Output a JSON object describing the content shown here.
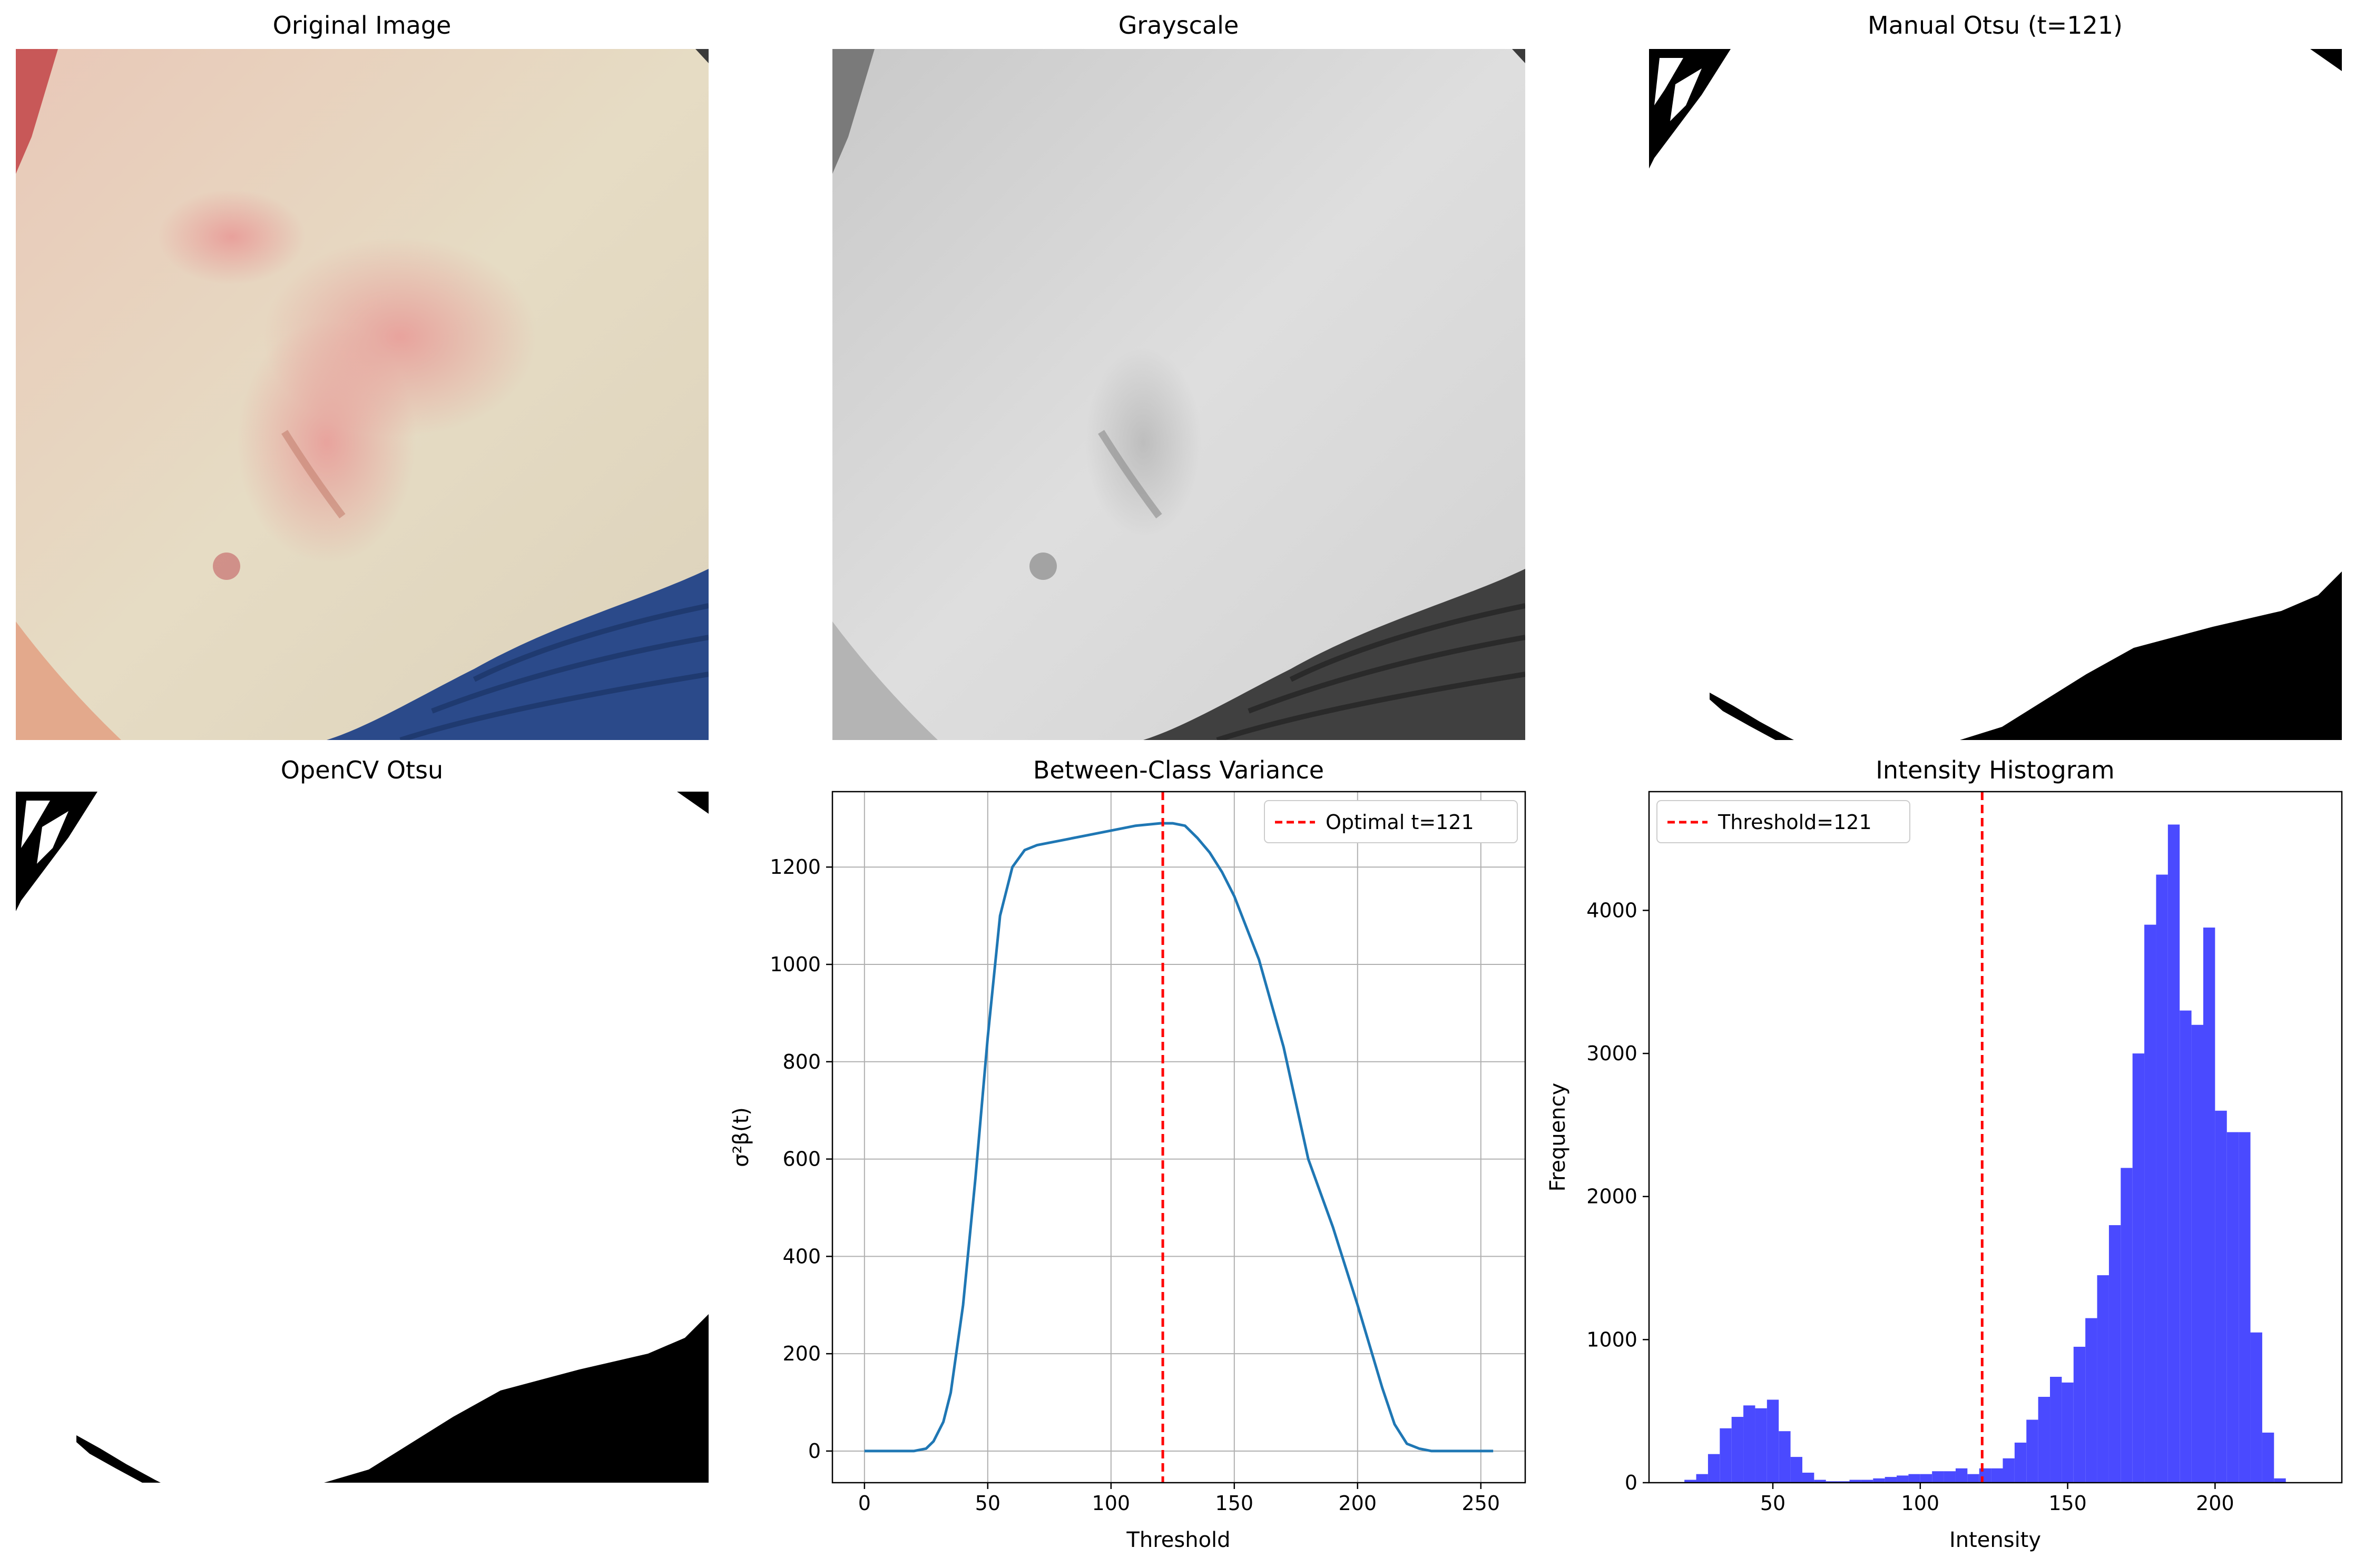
{
  "panels": {
    "original": {
      "title": "Original Image"
    },
    "grayscale": {
      "title": "Grayscale"
    },
    "manual_otsu": {
      "title": "Manual Otsu (t=121)"
    },
    "opencv_otsu": {
      "title": "OpenCV Otsu"
    }
  },
  "colors": {
    "variance_line": "#1f77b4",
    "threshold_line": "#ff0000",
    "histogram_bars": "#4a4aff",
    "skin": "#e6d9c0",
    "rash": "#e8a0a0",
    "fabric": "#2b4a8a",
    "grid": "#b0b0b0"
  },
  "chart_data": [
    {
      "type": "line",
      "title": "Between-Class Variance",
      "xlabel": "Threshold",
      "ylabel": "σ²β(t)",
      "xlim": [
        -13,
        268
      ],
      "ylim": [
        -65,
        1355
      ],
      "xticks": [
        0,
        50,
        100,
        150,
        200,
        250
      ],
      "yticks": [
        0,
        200,
        400,
        600,
        800,
        1000,
        1200
      ],
      "grid": true,
      "legend_position": "top-right",
      "series": [
        {
          "name": "",
          "x": [
            0,
            20,
            25,
            28,
            32,
            35,
            40,
            45,
            50,
            55,
            60,
            65,
            70,
            80,
            90,
            100,
            110,
            120,
            125,
            130,
            135,
            140,
            145,
            150,
            160,
            170,
            180,
            190,
            200,
            210,
            215,
            220,
            225,
            230,
            240,
            255
          ],
          "y": [
            0,
            0,
            5,
            20,
            60,
            120,
            300,
            560,
            850,
            1100,
            1200,
            1235,
            1245,
            1255,
            1265,
            1275,
            1285,
            1290,
            1290,
            1285,
            1260,
            1230,
            1190,
            1140,
            1010,
            830,
            600,
            460,
            300,
            130,
            55,
            15,
            5,
            0,
            0,
            0
          ]
        }
      ],
      "vline": {
        "x": 121,
        "label": "Optimal t=121"
      }
    },
    {
      "type": "bar",
      "title": "Intensity Histogram",
      "xlabel": "Intensity",
      "ylabel": "Frequency",
      "xlim": [
        8,
        243
      ],
      "ylim": [
        0,
        4830
      ],
      "xticks": [
        50,
        100,
        150,
        200
      ],
      "yticks": [
        0,
        1000,
        2000,
        3000,
        4000
      ],
      "grid": false,
      "legend_position": "top-left",
      "bin_edges": [
        20,
        24,
        28,
        32,
        36,
        40,
        44,
        48,
        52,
        56,
        60,
        64,
        68,
        72,
        76,
        80,
        84,
        88,
        92,
        96,
        100,
        104,
        108,
        112,
        116,
        120,
        124,
        128,
        132,
        136,
        140,
        144,
        148,
        152,
        156,
        160,
        164,
        168,
        172,
        176,
        180,
        184,
        188,
        192,
        196,
        200,
        204,
        208,
        212,
        216,
        220,
        224,
        228,
        232
      ],
      "counts": [
        20,
        60,
        200,
        380,
        460,
        540,
        520,
        580,
        360,
        180,
        70,
        20,
        10,
        10,
        20,
        20,
        30,
        40,
        50,
        60,
        60,
        80,
        80,
        100,
        60,
        100,
        100,
        170,
        280,
        440,
        600,
        740,
        700,
        950,
        1150,
        1450,
        1800,
        2200,
        3000,
        3900,
        4250,
        4600,
        3300,
        3200,
        3880,
        2600,
        2450,
        2450,
        1050,
        350,
        30,
        0,
        0
      ],
      "vline": {
        "x": 121,
        "label": "Threshold=121"
      }
    }
  ]
}
